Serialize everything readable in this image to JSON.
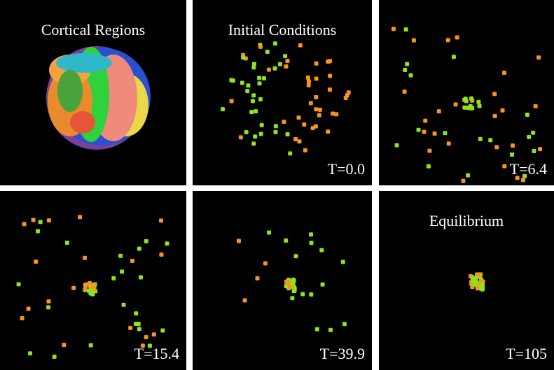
{
  "panels": [
    {
      "title": "Cortical Regions"
    },
    {
      "title": "Initial Conditions",
      "time": "T=0.0"
    },
    {
      "time": "T=6.4"
    },
    {
      "time": "T=15.4"
    },
    {
      "time": "T=39.9"
    },
    {
      "title": "Equilibrium",
      "time": "T=105"
    }
  ]
}
